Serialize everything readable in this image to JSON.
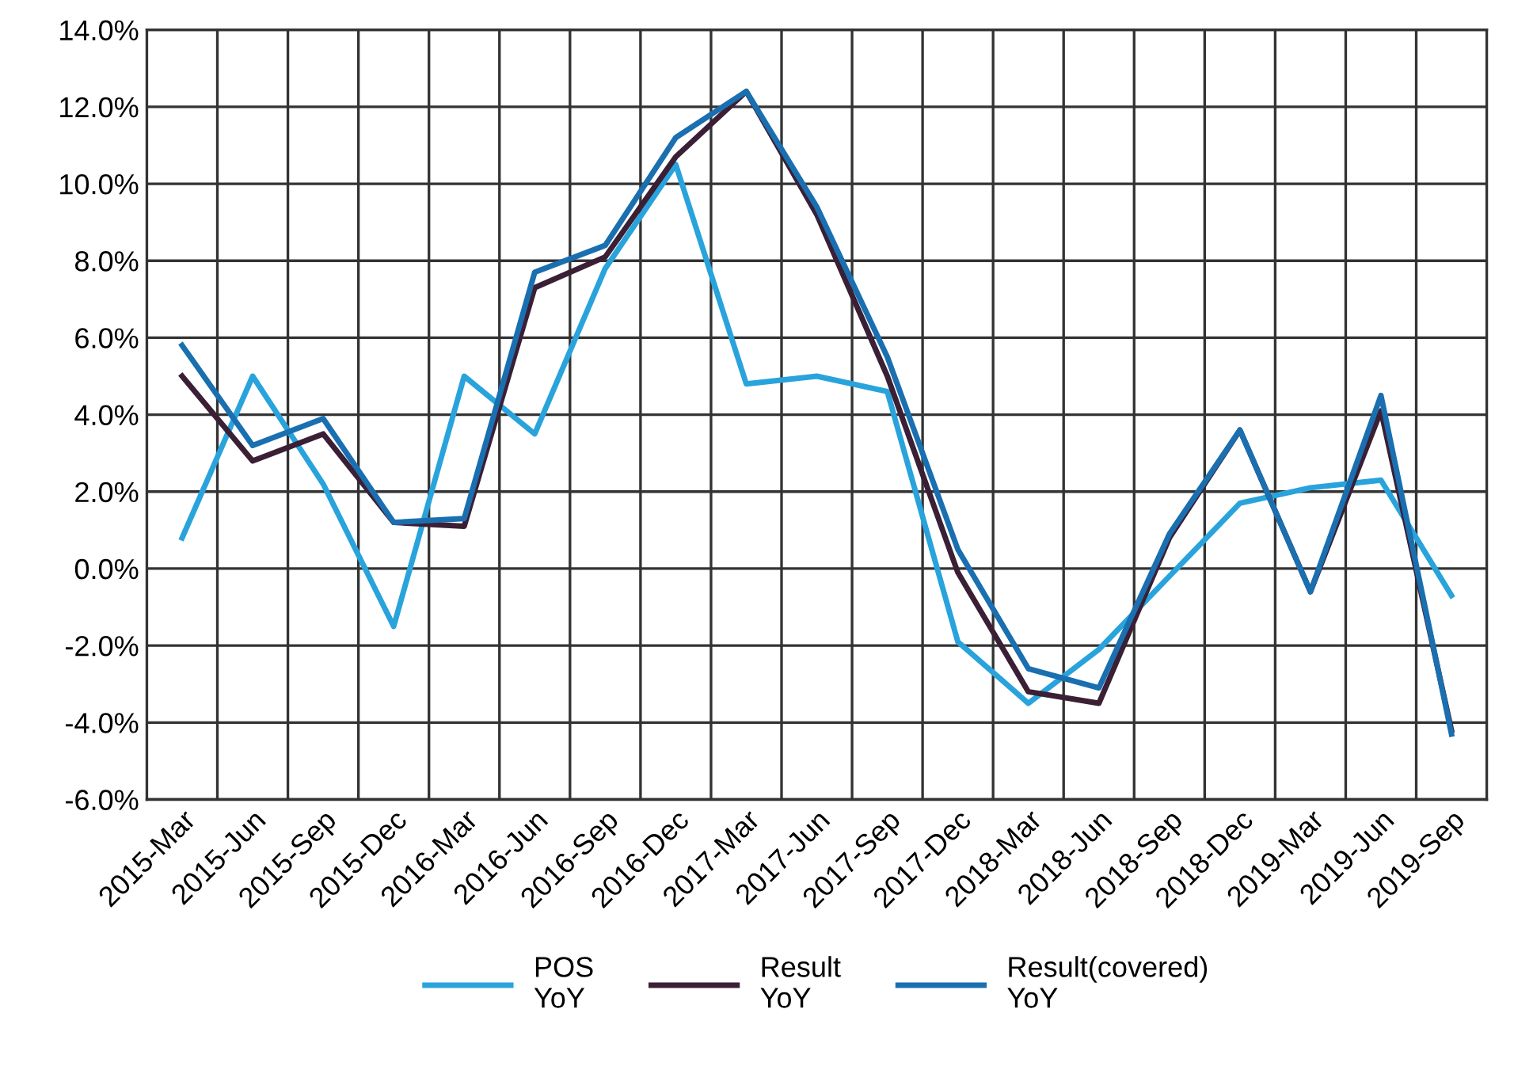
{
  "chart_data": {
    "type": "line",
    "categories": [
      "2015-Mar",
      "2015-Jun",
      "2015-Sep",
      "2015-Dec",
      "2016-Mar",
      "2016-Jun",
      "2016-Sep",
      "2016-Dec",
      "2017-Mar",
      "2017-Jun",
      "2017-Sep",
      "2017-Dec",
      "2018-Mar",
      "2018-Jun",
      "2018-Sep",
      "2018-Dec",
      "2019-Mar",
      "2019-Jun",
      "2019-Sep"
    ],
    "series": [
      {
        "name": "POS\nYoY",
        "color": "#29a3dc",
        "values": [
          0.8,
          5.0,
          2.2,
          -1.5,
          5.0,
          3.5,
          7.8,
          10.5,
          4.8,
          5.0,
          4.6,
          -1.9,
          -3.5,
          -2.1,
          -0.2,
          1.7,
          2.1,
          2.3,
          -0.7
        ]
      },
      {
        "name": "Result\nYoY",
        "color": "#3a1f35",
        "values": [
          5.0,
          2.8,
          3.5,
          1.2,
          1.1,
          7.3,
          8.1,
          10.7,
          12.4,
          9.2,
          5.0,
          -0.1,
          -3.2,
          -3.5,
          0.8,
          3.6,
          -0.6,
          4.1,
          -4.2
        ]
      },
      {
        "name": "Result(covered)\nYoY",
        "color": "#1a6fb0",
        "values": [
          5.8,
          3.2,
          3.9,
          1.2,
          1.3,
          7.7,
          8.4,
          11.2,
          12.4,
          9.4,
          5.5,
          0.5,
          -2.6,
          -3.1,
          0.9,
          3.6,
          -0.6,
          4.5,
          -4.3
        ]
      }
    ],
    "ylim": [
      -6,
      14
    ],
    "yticks": [
      {
        "value": -6,
        "label": "-6.0%"
      },
      {
        "value": -4,
        "label": "-4.0%"
      },
      {
        "value": -2,
        "label": "-2.0%"
      },
      {
        "value": 0,
        "label": "0.0%"
      },
      {
        "value": 2,
        "label": "2.0%"
      },
      {
        "value": 4,
        "label": "4.0%"
      },
      {
        "value": 6,
        "label": "6.0%"
      },
      {
        "value": 8,
        "label": "8.0%"
      },
      {
        "value": 10,
        "label": "10.0%"
      },
      {
        "value": 12,
        "label": "12.0%"
      },
      {
        "value": 14,
        "label": "14.0%"
      }
    ],
    "grid": true,
    "legend": "bottom",
    "marker": "none",
    "line_style": "solid"
  }
}
